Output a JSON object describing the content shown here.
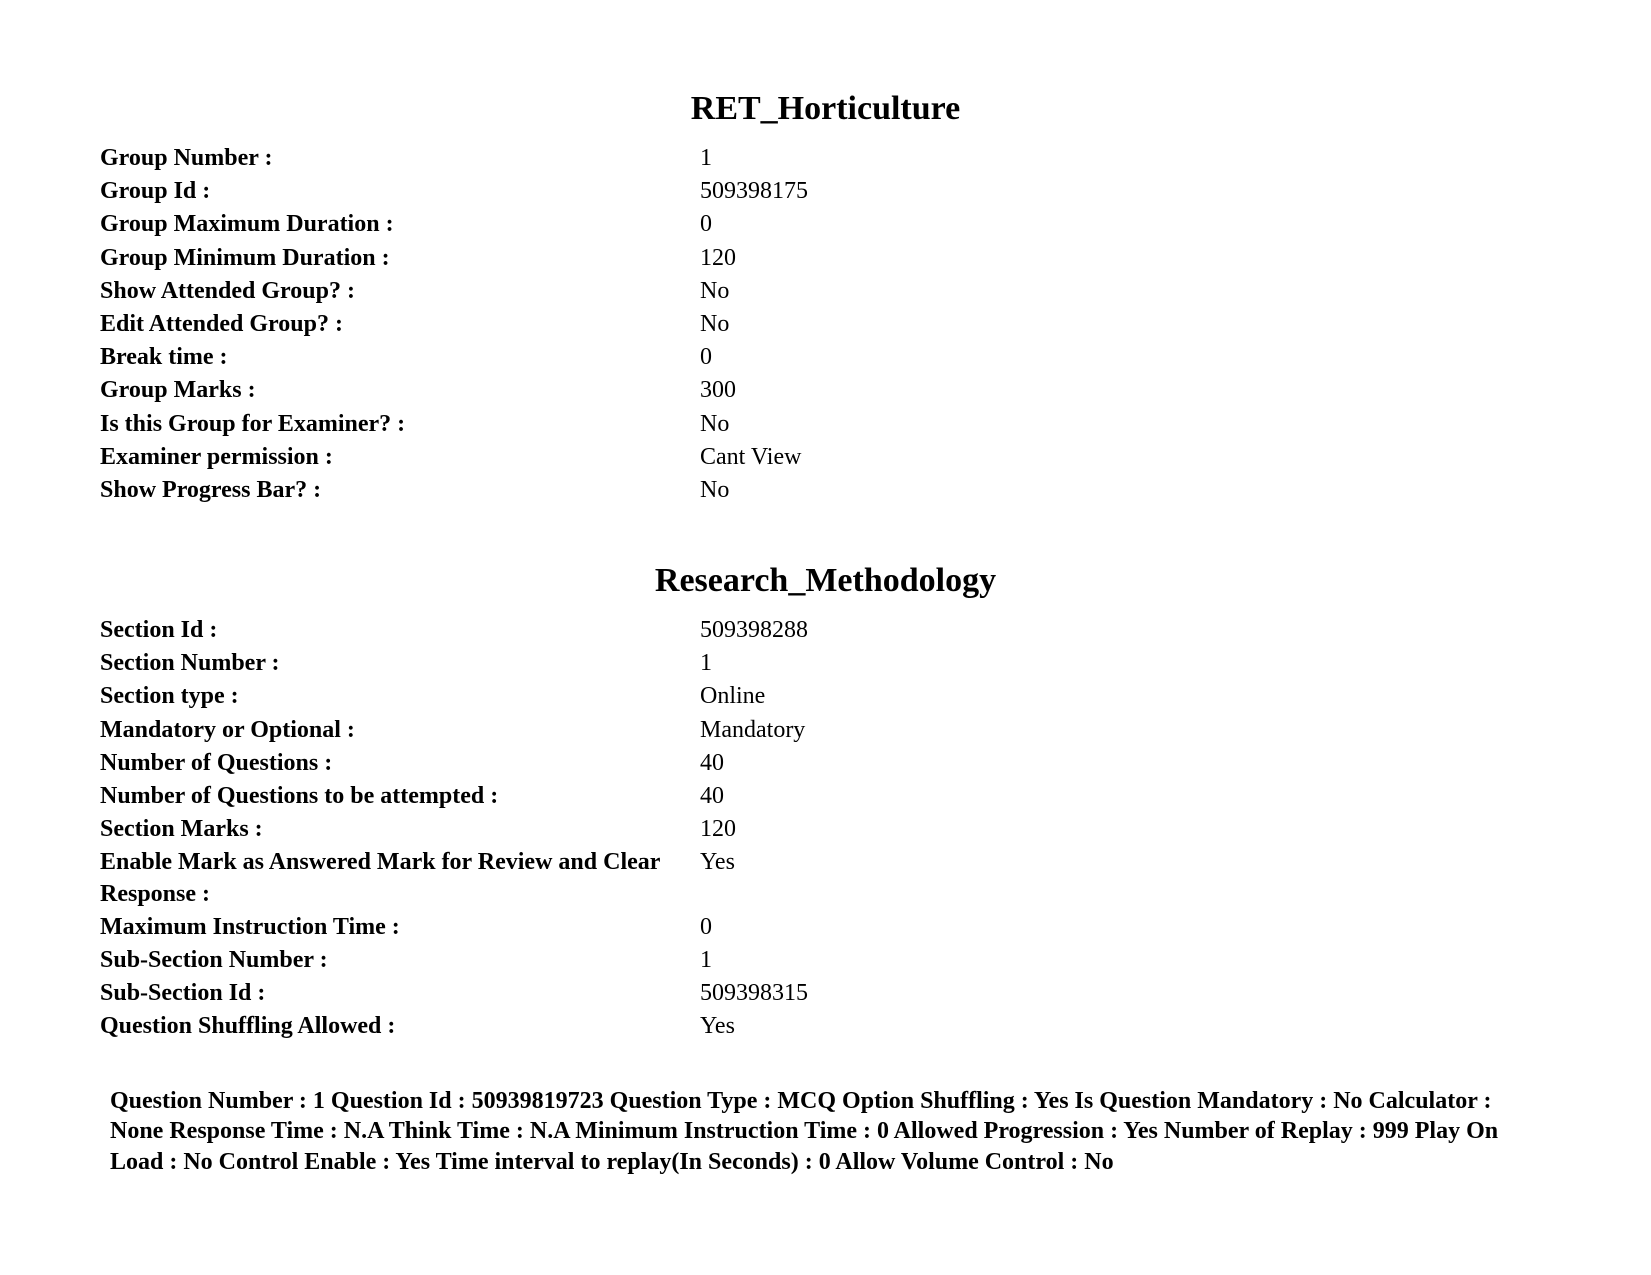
{
  "group": {
    "title": "RET_Horticulture",
    "rows": [
      {
        "label": "Group Number :",
        "value": "1"
      },
      {
        "label": "Group Id :",
        "value": "509398175"
      },
      {
        "label": "Group Maximum Duration :",
        "value": "0"
      },
      {
        "label": "Group Minimum Duration :",
        "value": "120"
      },
      {
        "label": "Show Attended Group? :",
        "value": "No"
      },
      {
        "label": "Edit Attended Group? :",
        "value": "No"
      },
      {
        "label": "Break time :",
        "value": "0"
      },
      {
        "label": "Group Marks :",
        "value": "300"
      },
      {
        "label": "Is this Group for Examiner? :",
        "value": "No"
      },
      {
        "label": "Examiner permission :",
        "value": "Cant View"
      },
      {
        "label": "Show Progress Bar? :",
        "value": "No"
      }
    ]
  },
  "section": {
    "title": "Research_Methodology",
    "rows": [
      {
        "label": "Section Id :",
        "value": "509398288"
      },
      {
        "label": "Section Number :",
        "value": "1"
      },
      {
        "label": "Section type :",
        "value": "Online"
      },
      {
        "label": "Mandatory or Optional :",
        "value": "Mandatory"
      },
      {
        "label": "Number of Questions :",
        "value": "40"
      },
      {
        "label": "Number of Questions to be attempted :",
        "value": "40"
      },
      {
        "label": "Section Marks :",
        "value": "120"
      },
      {
        "label": "Enable Mark as Answered Mark for Review and Clear Response :",
        "value": "Yes"
      },
      {
        "label": "Maximum Instruction Time :",
        "value": "0"
      },
      {
        "label": "Sub-Section Number :",
        "value": "1"
      },
      {
        "label": "Sub-Section Id :",
        "value": "509398315"
      },
      {
        "label": "Question Shuffling Allowed :",
        "value": "Yes"
      }
    ]
  },
  "question_meta": {
    "text": "Question Number : 1 Question Id : 50939819723 Question Type : MCQ Option Shuffling : Yes Is Question Mandatory : No Calculator : None Response Time : N.A Think Time : N.A Minimum Instruction Time : 0 Allowed Progression : Yes Number of Replay : 999 Play On Load : No Control Enable : Yes Time interval to replay(In Seconds) : 0 Allow Volume Control : No"
  }
}
